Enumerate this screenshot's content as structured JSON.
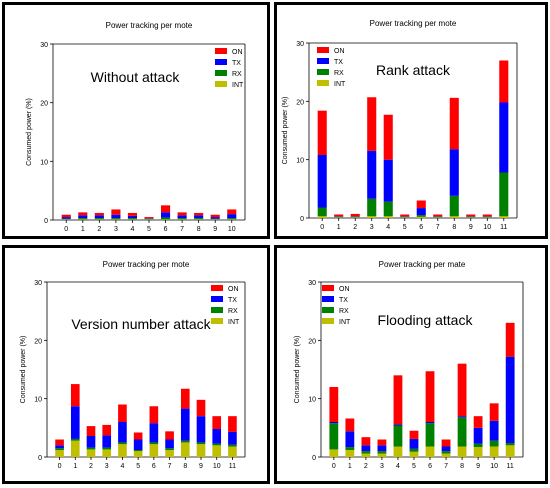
{
  "legend_labels": [
    "ON",
    "TX",
    "RX",
    "INT"
  ],
  "colors": {
    "ON": "#ff0000",
    "TX": "#0000ff",
    "RX": "#008000",
    "INT": "#bfbf00"
  },
  "chart_data": [
    {
      "type": "bar",
      "title": "Power tracking per mote",
      "annotation": "Without attack",
      "ylabel": "Consumed power (%)",
      "ylim": [
        0,
        30
      ],
      "yticks": [
        0,
        10,
        20,
        30
      ],
      "legend_position": "top-right",
      "categories": [
        "0",
        "1",
        "2",
        "3",
        "4",
        "5",
        "6",
        "7",
        "8",
        "9",
        "10"
      ],
      "series": [
        {
          "name": "INT",
          "values": [
            0.1,
            0.1,
            0.1,
            0.1,
            0.1,
            0.1,
            0.1,
            0.1,
            0.1,
            0.1,
            0.1
          ]
        },
        {
          "name": "RX",
          "values": [
            0.1,
            0.2,
            0.2,
            0.2,
            0.2,
            0.1,
            0.3,
            0.2,
            0.2,
            0.1,
            0.2
          ]
        },
        {
          "name": "TX",
          "values": [
            0.3,
            0.5,
            0.5,
            0.6,
            0.4,
            0.1,
            0.9,
            0.5,
            0.5,
            0.3,
            0.7
          ]
        },
        {
          "name": "ON",
          "values": [
            0.4,
            0.5,
            0.4,
            0.9,
            0.5,
            0.2,
            1.2,
            0.5,
            0.4,
            0.4,
            0.8
          ]
        }
      ]
    },
    {
      "type": "bar",
      "title": "Power tracking per mote",
      "annotation": "Rank attack",
      "ylabel": "Consumed power (%)",
      "ylim": [
        0,
        30
      ],
      "yticks": [
        0,
        10,
        20,
        30
      ],
      "legend_position": "top-left",
      "categories": [
        "0",
        "1",
        "2",
        "3",
        "4",
        "5",
        "6",
        "7",
        "8",
        "9",
        "10",
        "11"
      ],
      "series": [
        {
          "name": "INT",
          "values": [
            0.3,
            0.1,
            0.1,
            0.3,
            0.3,
            0.1,
            0.2,
            0.1,
            0.3,
            0.1,
            0.1,
            0.3
          ]
        },
        {
          "name": "RX",
          "values": [
            1.5,
            0.1,
            0.1,
            3.0,
            2.5,
            0.1,
            0.3,
            0.1,
            3.5,
            0.1,
            0.1,
            7.5
          ]
        },
        {
          "name": "TX",
          "values": [
            9.0,
            0.1,
            0.1,
            8.2,
            7.2,
            0.1,
            1.2,
            0.1,
            8.0,
            0.1,
            0.1,
            12.0
          ]
        },
        {
          "name": "ON",
          "values": [
            7.6,
            0.3,
            0.4,
            9.2,
            7.7,
            0.3,
            1.3,
            0.3,
            8.8,
            0.3,
            0.3,
            7.2
          ]
        }
      ]
    },
    {
      "type": "bar",
      "title": "Power tracking per mote",
      "annotation": "Version number attack",
      "ylabel": "Consumed power (%)",
      "ylim": [
        0,
        30
      ],
      "yticks": [
        0,
        10,
        20,
        30
      ],
      "legend_position": "top-right",
      "categories": [
        "0",
        "1",
        "2",
        "3",
        "4",
        "5",
        "6",
        "7",
        "8",
        "9",
        "10",
        "11"
      ],
      "series": [
        {
          "name": "INT",
          "values": [
            1.2,
            2.8,
            1.3,
            1.3,
            2.2,
            1.0,
            2.2,
            1.2,
            2.5,
            2.2,
            2.0,
            1.8
          ]
        },
        {
          "name": "RX",
          "values": [
            0.3,
            0.3,
            0.3,
            0.3,
            0.3,
            0.2,
            0.3,
            0.3,
            0.3,
            0.3,
            0.3,
            0.3
          ]
        },
        {
          "name": "TX",
          "values": [
            0.5,
            5.6,
            2.0,
            2.1,
            3.5,
            1.8,
            3.3,
            1.5,
            5.5,
            4.5,
            2.5,
            2.2
          ]
        },
        {
          "name": "ON",
          "values": [
            1.0,
            3.8,
            1.7,
            1.8,
            3.0,
            1.2,
            2.9,
            1.4,
            3.4,
            2.8,
            2.2,
            2.7
          ]
        }
      ]
    },
    {
      "type": "bar",
      "title": "Power tracking per mate",
      "annotation": "Flooding attack",
      "ylabel": "Consumed power (%)",
      "ylim": [
        0,
        30
      ],
      "yticks": [
        0,
        10,
        20,
        30
      ],
      "legend_position": "top-left",
      "categories": [
        "0",
        "1",
        "2",
        "3",
        "4",
        "5",
        "6",
        "7",
        "8",
        "9",
        "10",
        "11"
      ],
      "series": [
        {
          "name": "INT",
          "values": [
            1.3,
            1.2,
            0.6,
            0.6,
            1.8,
            0.9,
            1.8,
            0.6,
            1.8,
            1.7,
            1.8,
            2.0
          ]
        },
        {
          "name": "RX",
          "values": [
            4.5,
            0.5,
            0.4,
            0.4,
            3.6,
            0.5,
            4.0,
            0.4,
            5.0,
            0.6,
            1.0,
            0.4
          ]
        },
        {
          "name": "TX",
          "values": [
            0.2,
            2.7,
            1.0,
            1.0,
            0.2,
            1.7,
            0.2,
            0.8,
            0.2,
            2.7,
            3.4,
            14.8
          ]
        },
        {
          "name": "ON",
          "values": [
            6.0,
            2.2,
            1.4,
            1.0,
            8.4,
            1.4,
            8.7,
            1.2,
            9.0,
            2.0,
            3.0,
            5.8
          ]
        }
      ]
    }
  ]
}
